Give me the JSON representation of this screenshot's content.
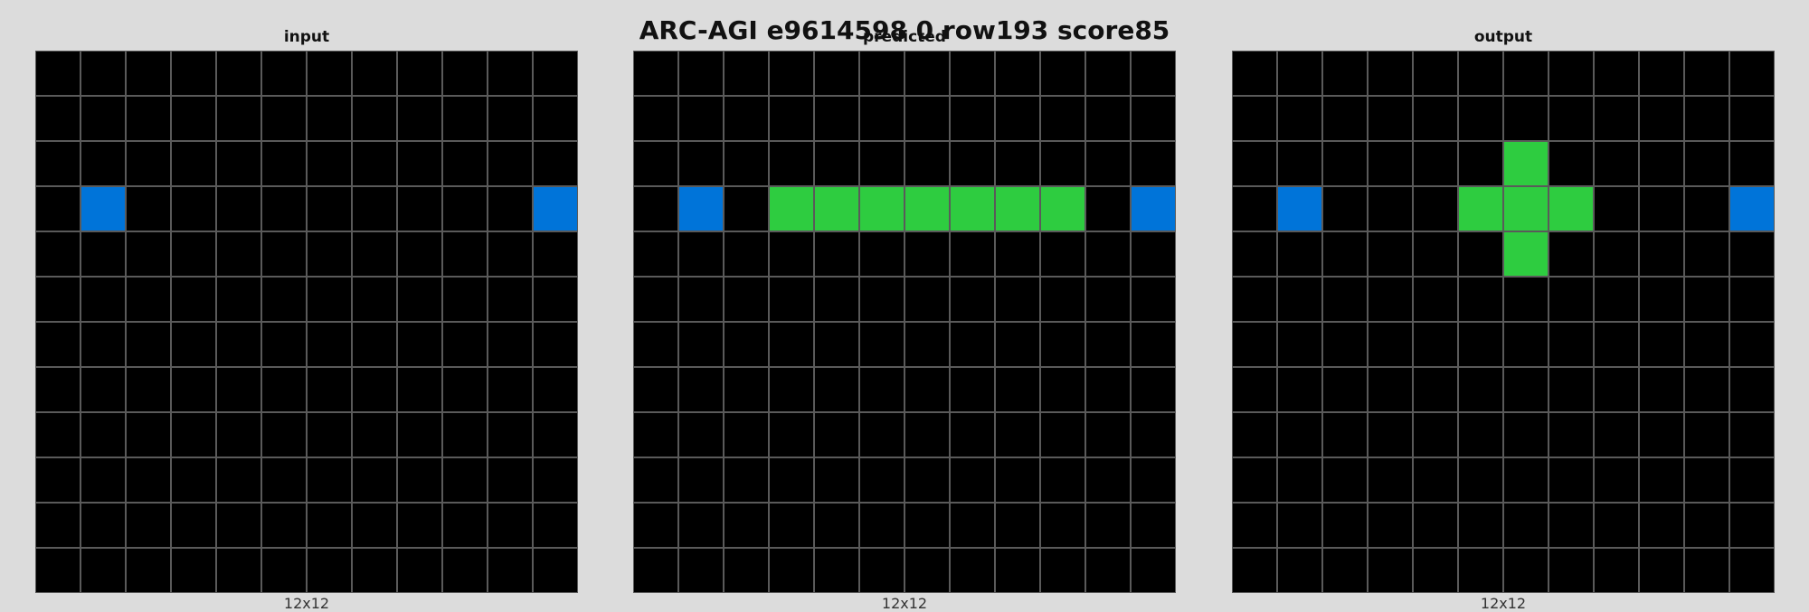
{
  "title": "ARC-AGI e9614598 0 row193 score85",
  "palette": {
    "0": "#000000",
    "1": "#0074D9",
    "3": "#2ECC40"
  },
  "panels": [
    {
      "label": "input",
      "size": "12x12",
      "rows": 12,
      "cols": 12,
      "grid": [
        [
          0,
          0,
          0,
          0,
          0,
          0,
          0,
          0,
          0,
          0,
          0,
          0
        ],
        [
          0,
          0,
          0,
          0,
          0,
          0,
          0,
          0,
          0,
          0,
          0,
          0
        ],
        [
          0,
          0,
          0,
          0,
          0,
          0,
          0,
          0,
          0,
          0,
          0,
          0
        ],
        [
          0,
          1,
          0,
          0,
          0,
          0,
          0,
          0,
          0,
          0,
          0,
          1
        ],
        [
          0,
          0,
          0,
          0,
          0,
          0,
          0,
          0,
          0,
          0,
          0,
          0
        ],
        [
          0,
          0,
          0,
          0,
          0,
          0,
          0,
          0,
          0,
          0,
          0,
          0
        ],
        [
          0,
          0,
          0,
          0,
          0,
          0,
          0,
          0,
          0,
          0,
          0,
          0
        ],
        [
          0,
          0,
          0,
          0,
          0,
          0,
          0,
          0,
          0,
          0,
          0,
          0
        ],
        [
          0,
          0,
          0,
          0,
          0,
          0,
          0,
          0,
          0,
          0,
          0,
          0
        ],
        [
          0,
          0,
          0,
          0,
          0,
          0,
          0,
          0,
          0,
          0,
          0,
          0
        ],
        [
          0,
          0,
          0,
          0,
          0,
          0,
          0,
          0,
          0,
          0,
          0,
          0
        ],
        [
          0,
          0,
          0,
          0,
          0,
          0,
          0,
          0,
          0,
          0,
          0,
          0
        ]
      ]
    },
    {
      "label": "predicted",
      "size": "12x12",
      "rows": 12,
      "cols": 12,
      "grid": [
        [
          0,
          0,
          0,
          0,
          0,
          0,
          0,
          0,
          0,
          0,
          0,
          0
        ],
        [
          0,
          0,
          0,
          0,
          0,
          0,
          0,
          0,
          0,
          0,
          0,
          0
        ],
        [
          0,
          0,
          0,
          0,
          0,
          0,
          0,
          0,
          0,
          0,
          0,
          0
        ],
        [
          0,
          1,
          0,
          3,
          3,
          3,
          3,
          3,
          3,
          3,
          0,
          1
        ],
        [
          0,
          0,
          0,
          0,
          0,
          0,
          0,
          0,
          0,
          0,
          0,
          0
        ],
        [
          0,
          0,
          0,
          0,
          0,
          0,
          0,
          0,
          0,
          0,
          0,
          0
        ],
        [
          0,
          0,
          0,
          0,
          0,
          0,
          0,
          0,
          0,
          0,
          0,
          0
        ],
        [
          0,
          0,
          0,
          0,
          0,
          0,
          0,
          0,
          0,
          0,
          0,
          0
        ],
        [
          0,
          0,
          0,
          0,
          0,
          0,
          0,
          0,
          0,
          0,
          0,
          0
        ],
        [
          0,
          0,
          0,
          0,
          0,
          0,
          0,
          0,
          0,
          0,
          0,
          0
        ],
        [
          0,
          0,
          0,
          0,
          0,
          0,
          0,
          0,
          0,
          0,
          0,
          0
        ],
        [
          0,
          0,
          0,
          0,
          0,
          0,
          0,
          0,
          0,
          0,
          0,
          0
        ]
      ]
    },
    {
      "label": "output",
      "size": "12x12",
      "rows": 12,
      "cols": 12,
      "grid": [
        [
          0,
          0,
          0,
          0,
          0,
          0,
          0,
          0,
          0,
          0,
          0,
          0
        ],
        [
          0,
          0,
          0,
          0,
          0,
          0,
          0,
          0,
          0,
          0,
          0,
          0
        ],
        [
          0,
          0,
          0,
          0,
          0,
          0,
          3,
          0,
          0,
          0,
          0,
          0
        ],
        [
          0,
          1,
          0,
          0,
          0,
          3,
          3,
          3,
          0,
          0,
          0,
          1
        ],
        [
          0,
          0,
          0,
          0,
          0,
          0,
          3,
          0,
          0,
          0,
          0,
          0
        ],
        [
          0,
          0,
          0,
          0,
          0,
          0,
          0,
          0,
          0,
          0,
          0,
          0
        ],
        [
          0,
          0,
          0,
          0,
          0,
          0,
          0,
          0,
          0,
          0,
          0,
          0
        ],
        [
          0,
          0,
          0,
          0,
          0,
          0,
          0,
          0,
          0,
          0,
          0,
          0
        ],
        [
          0,
          0,
          0,
          0,
          0,
          0,
          0,
          0,
          0,
          0,
          0,
          0
        ],
        [
          0,
          0,
          0,
          0,
          0,
          0,
          0,
          0,
          0,
          0,
          0,
          0
        ],
        [
          0,
          0,
          0,
          0,
          0,
          0,
          0,
          0,
          0,
          0,
          0,
          0
        ],
        [
          0,
          0,
          0,
          0,
          0,
          0,
          0,
          0,
          0,
          0,
          0,
          0
        ]
      ]
    }
  ]
}
